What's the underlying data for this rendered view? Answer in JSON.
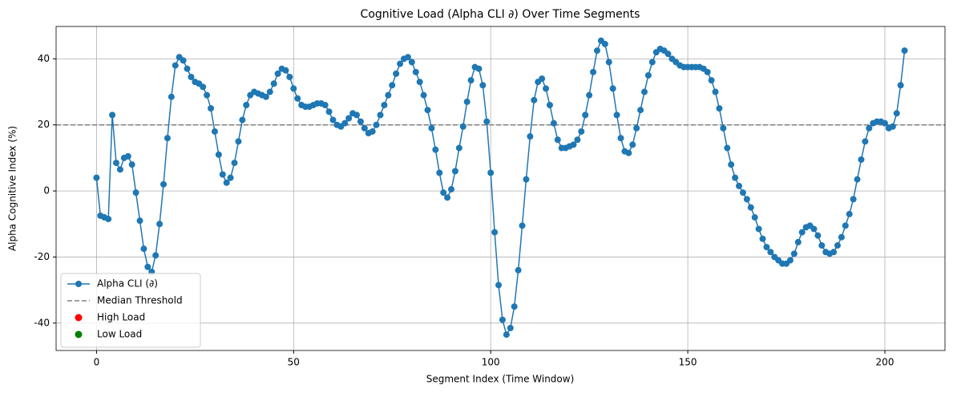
{
  "chart_data": {
    "type": "line",
    "title": "Cognitive Load (Alpha CLI ∂) Over Time Segments",
    "xlabel": "Segment Index (Time Window)",
    "ylabel": "Alpha Cognitive Index (%)",
    "x": [
      0,
      1,
      2,
      3,
      4,
      5,
      6,
      7,
      8,
      9,
      10,
      11,
      12,
      13,
      14,
      15,
      16,
      17,
      18,
      19,
      20,
      21,
      22,
      23,
      24,
      25,
      26,
      27,
      28,
      29,
      30,
      31,
      32,
      33,
      34,
      35,
      36,
      37,
      38,
      39,
      40,
      41,
      42,
      43,
      44,
      45,
      46,
      47,
      48,
      49,
      50,
      51,
      52,
      53,
      54,
      55,
      56,
      57,
      58,
      59,
      60,
      61,
      62,
      63,
      64,
      65,
      66,
      67,
      68,
      69,
      70,
      71,
      72,
      73,
      74,
      75,
      76,
      77,
      78,
      79,
      80,
      81,
      82,
      83,
      84,
      85,
      86,
      87,
      88,
      89,
      90,
      91,
      92,
      93,
      94,
      95,
      96,
      97,
      98,
      99,
      100,
      101,
      102,
      103,
      104,
      105,
      106,
      107,
      108,
      109,
      110,
      111,
      112,
      113,
      114,
      115,
      116,
      117,
      118,
      119,
      120,
      121,
      122,
      123,
      124,
      125,
      126,
      127,
      128,
      129,
      130,
      131,
      132,
      133,
      134,
      135,
      136,
      137,
      138,
      139,
      140,
      141,
      142,
      143,
      144,
      145,
      146,
      147,
      148,
      149,
      150,
      151,
      152,
      153,
      154,
      155,
      156,
      157,
      158,
      159,
      160,
      161,
      162,
      163,
      164,
      165,
      166,
      167,
      168,
      169,
      170,
      171,
      172,
      173,
      174,
      175,
      176,
      177,
      178,
      179,
      180,
      181,
      182,
      183,
      184,
      185,
      186,
      187,
      188,
      189,
      190,
      191,
      192,
      193,
      194,
      195,
      196,
      197,
      198,
      199,
      200,
      201,
      202,
      203,
      204,
      205
    ],
    "series": [
      {
        "name": "Alpha CLI (∂)",
        "type": "line",
        "color": "#1f77b4",
        "values": [
          4,
          -7.5,
          -8,
          -8.5,
          23,
          8.5,
          6.5,
          10,
          10.5,
          8,
          -0.5,
          -9,
          -17.5,
          -23,
          -24.5,
          -19.5,
          -10,
          2,
          16,
          28.5,
          38,
          40.5,
          39.5,
          37,
          34.5,
          33,
          32.5,
          31.5,
          29,
          25,
          18,
          11,
          5,
          2.5,
          4,
          8.5,
          15,
          21.5,
          26,
          29,
          30,
          29.5,
          29,
          28.5,
          30,
          32.5,
          35.5,
          37,
          36.5,
          34.5,
          31,
          28,
          26,
          25.5,
          25.5,
          26,
          26.5,
          26.5,
          26,
          24,
          21.5,
          20,
          19.5,
          20.5,
          22,
          23.5,
          23,
          21,
          19,
          17.5,
          18,
          20,
          23,
          26,
          29,
          32,
          35.5,
          38.5,
          40,
          40.5,
          39,
          36,
          33,
          29,
          24.5,
          19,
          12.5,
          5.5,
          -0.5,
          -2,
          0.5,
          6,
          13,
          19.5,
          27,
          33.5,
          37.5,
          37,
          32,
          21,
          5.5,
          -12.5,
          -28.5,
          -39,
          -43.5,
          -41.5,
          -35,
          -24,
          -10.5,
          3.5,
          16.5,
          27.5,
          33,
          34,
          31,
          26,
          20.5,
          15.5,
          13,
          13,
          13.5,
          14,
          15.5,
          18,
          23,
          29,
          36,
          42.5,
          45.5,
          44.5,
          39,
          31,
          23,
          16,
          12,
          11.5,
          14,
          19,
          24.5,
          30,
          35,
          39,
          42,
          43,
          42.5,
          41.5,
          40,
          39,
          38,
          37.5,
          37.5,
          37.5,
          37.5,
          37.5,
          37,
          36,
          33.5,
          30,
          25,
          19,
          13,
          8,
          4,
          1.5,
          -0.5,
          -2.5,
          -5,
          -8,
          -11.5,
          -14.5,
          -17,
          -18.5,
          -20,
          -21,
          -22,
          -22,
          -21,
          -19,
          -15.5,
          -12.5,
          -11,
          -10.5,
          -11.5,
          -13.5,
          -16.5,
          -18.5,
          -19,
          -18.5,
          -16.5,
          -14,
          -10.5,
          -7,
          -2.5,
          3.5,
          9.5,
          15,
          19,
          20.5,
          21,
          21,
          20.5,
          19,
          19.5,
          23.5,
          32,
          42.5
        ]
      },
      {
        "name": "High Load",
        "type": "scatter",
        "color": "red",
        "values": []
      },
      {
        "name": "Low Load",
        "type": "scatter",
        "color": "green",
        "values": []
      }
    ],
    "threshold": {
      "name": "Median Threshold",
      "value": 20,
      "color": "gray"
    },
    "xlim": [
      -10.25,
      215.25
    ],
    "ylim": [
      -48.3,
      49.8
    ],
    "xticks": [
      0,
      50,
      100,
      150,
      200
    ],
    "yticks": [
      -40,
      -20,
      0,
      20,
      40
    ],
    "grid": true,
    "legend": "lower left"
  }
}
